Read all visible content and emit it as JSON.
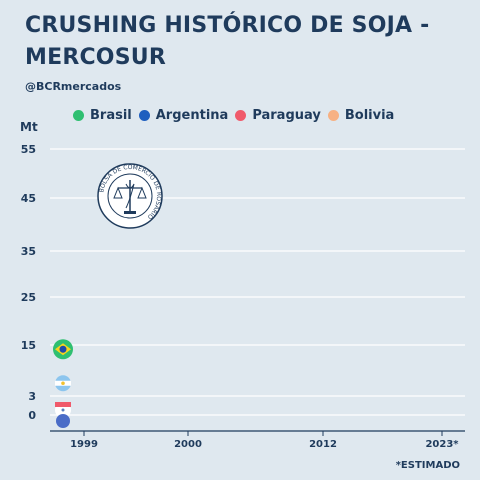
{
  "title": "CRUSHING HISTÓRICO DE SOJA - MERCOSUR",
  "subtitle": "@BCRmercados",
  "unit_label": "Mt",
  "footnote": "*ESTIMADO",
  "seal_text": "BOLSA DE COMERCIO DE ROSARIO",
  "legend": [
    {
      "label": "Brasil",
      "color": "#2fbf71"
    },
    {
      "label": "Argentina",
      "color": "#1f5fbf"
    },
    {
      "label": "Paraguay",
      "color": "#f05a6b"
    },
    {
      "label": "Bolivia",
      "color": "#f7b183"
    }
  ],
  "chart_data": {
    "type": "line",
    "title": "CRUSHING HISTÓRICO DE SOJA - MERCOSUR",
    "ylabel": "Mt",
    "x_ticks": [
      "1999",
      "2000",
      "2012",
      "2023*"
    ],
    "y_ticks": [
      0,
      3,
      15,
      25,
      35,
      45,
      55
    ],
    "ylim": [
      0,
      55
    ],
    "grid": true,
    "legend_position": "top",
    "series": [
      {
        "name": "Brasil",
        "color": "#2fbf71",
        "x": [
          "1999"
        ],
        "values": [
          14
        ]
      },
      {
        "name": "Argentina",
        "color": "#1f5fbf",
        "x": [
          "1999"
        ],
        "values": [
          6
        ]
      },
      {
        "name": "Paraguay",
        "color": "#f05a6b",
        "x": [
          "1999"
        ],
        "values": [
          0.5
        ]
      },
      {
        "name": "Bolivia",
        "color": "#f7b183",
        "x": [
          "1999"
        ],
        "values": [
          0.5
        ]
      }
    ]
  }
}
